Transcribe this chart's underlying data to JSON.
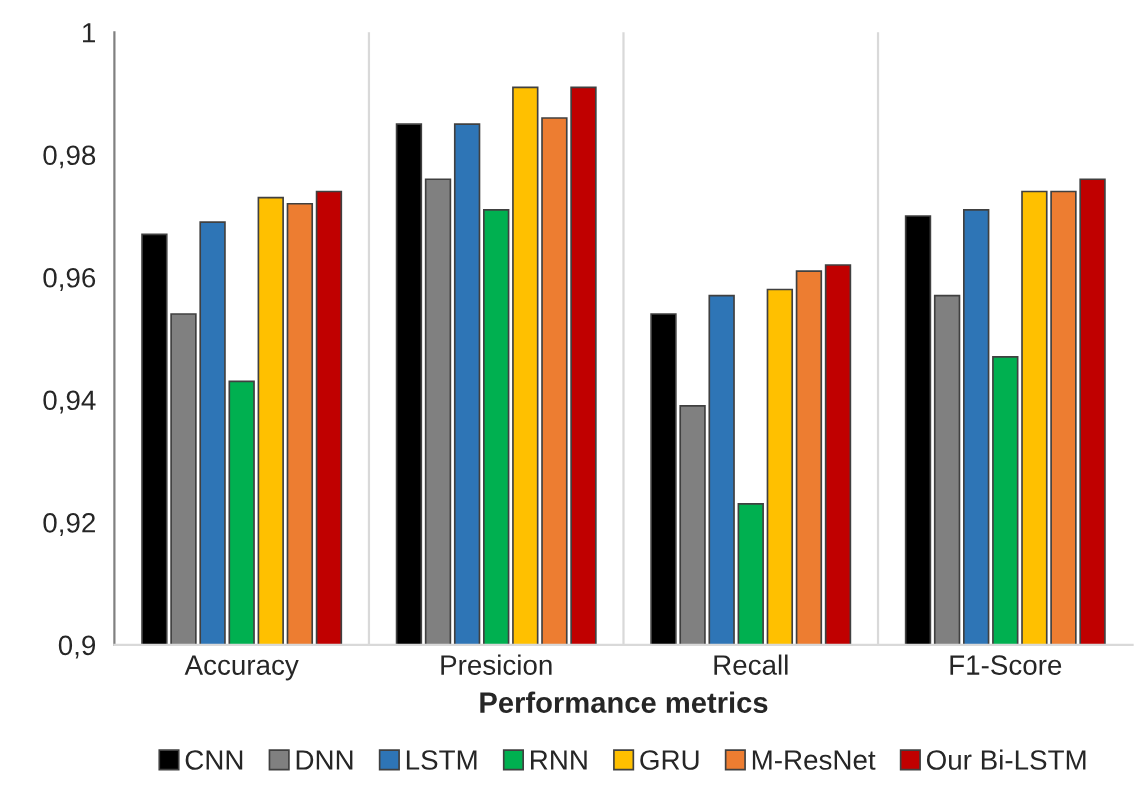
{
  "chart_data": {
    "type": "bar",
    "xlabel": "Performance metrics",
    "categories": [
      "Accuracy",
      "Presicion",
      "Recall",
      "F1-Score"
    ],
    "series": [
      {
        "name": "CNN",
        "color": "#000000",
        "values": [
          0.967,
          0.985,
          0.954,
          0.97
        ]
      },
      {
        "name": "DNN",
        "color": "#808080",
        "values": [
          0.954,
          0.976,
          0.939,
          0.957
        ]
      },
      {
        "name": "LSTM",
        "color": "#2e75b6",
        "values": [
          0.969,
          0.985,
          0.957,
          0.971
        ]
      },
      {
        "name": "RNN",
        "color": "#00b050",
        "values": [
          0.943,
          0.971,
          0.923,
          0.947
        ]
      },
      {
        "name": "GRU",
        "color": "#ffc000",
        "values": [
          0.973,
          0.991,
          0.958,
          0.974
        ]
      },
      {
        "name": "M-ResNet",
        "color": "#ed7d31",
        "values": [
          0.972,
          0.986,
          0.961,
          0.974
        ]
      },
      {
        "name": "Our Bi-LSTM",
        "color": "#c00000",
        "values": [
          0.974,
          0.991,
          0.962,
          0.976
        ]
      }
    ],
    "ylim": [
      0.9,
      1
    ],
    "yticks": [
      {
        "value": 0.9,
        "label": "0,9"
      },
      {
        "value": 0.92,
        "label": "0,92"
      },
      {
        "value": 0.94,
        "label": "0,94"
      },
      {
        "value": 0.96,
        "label": "0,96"
      },
      {
        "value": 0.98,
        "label": "0,98"
      },
      {
        "value": 1,
        "label": "1"
      }
    ],
    "grid": "x",
    "legend": "bottom"
  }
}
